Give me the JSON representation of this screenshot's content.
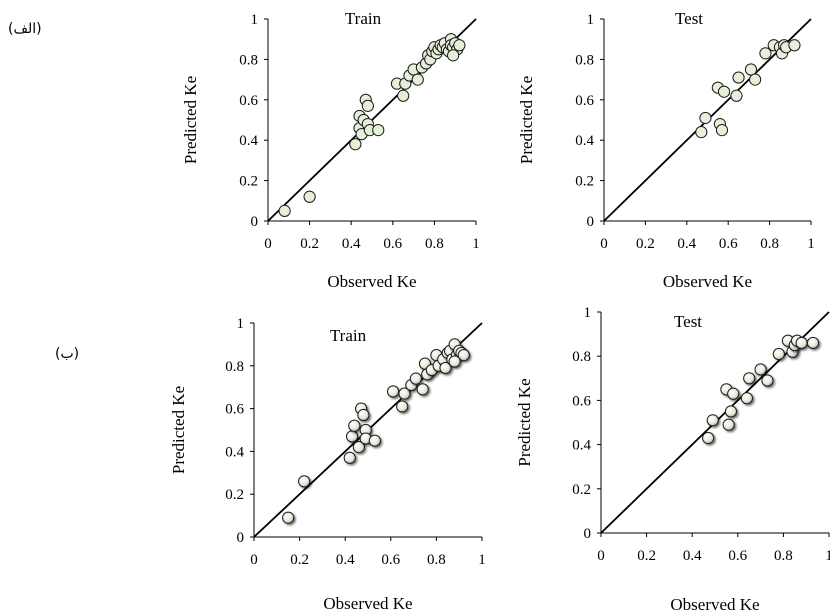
{
  "panel_labels": [
    "(الف)",
    "(ب)"
  ],
  "chart_data": [
    {
      "type": "scatter",
      "title": "Train",
      "xlabel": "Observed Ke",
      "ylabel": "Predicted Ke",
      "xlim": [
        0,
        1
      ],
      "ylim": [
        0,
        1
      ],
      "xticks": [
        "0",
        "0.2",
        "0.4",
        "0.6",
        "0.8",
        "1"
      ],
      "yticks": [
        "0",
        "0.2",
        "0.4",
        "0.6",
        "0.8",
        "1"
      ],
      "reference_line": "y = x",
      "marker_style": "flat",
      "points": [
        [
          0.08,
          0.05
        ],
        [
          0.2,
          0.12
        ],
        [
          0.42,
          0.38
        ],
        [
          0.44,
          0.46
        ],
        [
          0.44,
          0.52
        ],
        [
          0.45,
          0.43
        ],
        [
          0.46,
          0.5
        ],
        [
          0.47,
          0.6
        ],
        [
          0.48,
          0.57
        ],
        [
          0.48,
          0.48
        ],
        [
          0.49,
          0.45
        ],
        [
          0.53,
          0.45
        ],
        [
          0.62,
          0.68
        ],
        [
          0.65,
          0.62
        ],
        [
          0.66,
          0.68
        ],
        [
          0.68,
          0.72
        ],
        [
          0.7,
          0.75
        ],
        [
          0.72,
          0.7
        ],
        [
          0.74,
          0.76
        ],
        [
          0.76,
          0.78
        ],
        [
          0.77,
          0.82
        ],
        [
          0.78,
          0.8
        ],
        [
          0.79,
          0.84
        ],
        [
          0.8,
          0.86
        ],
        [
          0.81,
          0.83
        ],
        [
          0.82,
          0.85
        ],
        [
          0.83,
          0.87
        ],
        [
          0.84,
          0.86
        ],
        [
          0.85,
          0.88
        ],
        [
          0.86,
          0.85
        ],
        [
          0.87,
          0.84
        ],
        [
          0.88,
          0.9
        ],
        [
          0.88,
          0.87
        ],
        [
          0.89,
          0.86
        ],
        [
          0.9,
          0.88
        ],
        [
          0.91,
          0.85
        ],
        [
          0.92,
          0.87
        ],
        [
          0.89,
          0.82
        ]
      ]
    },
    {
      "type": "scatter",
      "title": "Test",
      "xlabel": "Observed Ke",
      "ylabel": "Predicted Ke",
      "xlim": [
        0,
        1
      ],
      "ylim": [
        0,
        1
      ],
      "xticks": [
        "0",
        "0.2",
        "0.4",
        "0.6",
        "0.8",
        "1"
      ],
      "yticks": [
        "0",
        "0.2",
        "0.4",
        "0.6",
        "0.8",
        "1"
      ],
      "reference_line": "y = x",
      "marker_style": "flat",
      "points": [
        [
          0.47,
          0.44
        ],
        [
          0.49,
          0.51
        ],
        [
          0.55,
          0.66
        ],
        [
          0.56,
          0.48
        ],
        [
          0.57,
          0.45
        ],
        [
          0.58,
          0.64
        ],
        [
          0.64,
          0.62
        ],
        [
          0.65,
          0.71
        ],
        [
          0.71,
          0.75
        ],
        [
          0.73,
          0.7
        ],
        [
          0.78,
          0.83
        ],
        [
          0.82,
          0.87
        ],
        [
          0.85,
          0.86
        ],
        [
          0.86,
          0.83
        ],
        [
          0.87,
          0.87
        ],
        [
          0.88,
          0.86
        ],
        [
          0.92,
          0.87
        ]
      ]
    },
    {
      "type": "scatter",
      "title": "Train",
      "xlabel": "Observed Ke",
      "ylabel": "Predicted Ke",
      "xlim": [
        0,
        1
      ],
      "ylim": [
        0,
        1
      ],
      "xticks": [
        "0",
        "0.2",
        "0.4",
        "0.6",
        "0.8",
        "1"
      ],
      "yticks": [
        "0",
        "0.2",
        "0.4",
        "0.6",
        "0.8",
        "1"
      ],
      "reference_line": "y = x",
      "marker_style": "shaded",
      "points": [
        [
          0.15,
          0.09
        ],
        [
          0.22,
          0.26
        ],
        [
          0.42,
          0.37
        ],
        [
          0.43,
          0.47
        ],
        [
          0.44,
          0.52
        ],
        [
          0.46,
          0.42
        ],
        [
          0.47,
          0.6
        ],
        [
          0.48,
          0.57
        ],
        [
          0.49,
          0.5
        ],
        [
          0.49,
          0.46
        ],
        [
          0.53,
          0.45
        ],
        [
          0.61,
          0.68
        ],
        [
          0.65,
          0.61
        ],
        [
          0.66,
          0.67
        ],
        [
          0.69,
          0.71
        ],
        [
          0.71,
          0.74
        ],
        [
          0.74,
          0.69
        ],
        [
          0.75,
          0.81
        ],
        [
          0.76,
          0.76
        ],
        [
          0.78,
          0.78
        ],
        [
          0.8,
          0.85
        ],
        [
          0.81,
          0.8
        ],
        [
          0.83,
          0.83
        ],
        [
          0.84,
          0.79
        ],
        [
          0.85,
          0.86
        ],
        [
          0.86,
          0.87
        ],
        [
          0.87,
          0.83
        ],
        [
          0.88,
          0.9
        ],
        [
          0.89,
          0.85
        ],
        [
          0.9,
          0.87
        ],
        [
          0.91,
          0.86
        ],
        [
          0.92,
          0.85
        ],
        [
          0.88,
          0.82
        ]
      ]
    },
    {
      "type": "scatter",
      "title": "Test",
      "xlabel": "Observed Ke",
      "ylabel": "Predicted Ke",
      "xlim": [
        0,
        1
      ],
      "ylim": [
        0,
        1
      ],
      "xticks": [
        "0",
        "0.2",
        "0.4",
        "0.6",
        "0.8",
        "1"
      ],
      "yticks": [
        "0",
        "0.2",
        "0.4",
        "0.6",
        "0.8",
        "1"
      ],
      "reference_line": "y = x",
      "marker_style": "shaded",
      "points": [
        [
          0.47,
          0.43
        ],
        [
          0.49,
          0.51
        ],
        [
          0.55,
          0.65
        ],
        [
          0.56,
          0.49
        ],
        [
          0.57,
          0.55
        ],
        [
          0.58,
          0.63
        ],
        [
          0.64,
          0.61
        ],
        [
          0.65,
          0.7
        ],
        [
          0.7,
          0.74
        ],
        [
          0.73,
          0.69
        ],
        [
          0.78,
          0.81
        ],
        [
          0.82,
          0.87
        ],
        [
          0.84,
          0.82
        ],
        [
          0.85,
          0.85
        ],
        [
          0.86,
          0.87
        ],
        [
          0.88,
          0.86
        ],
        [
          0.93,
          0.86
        ]
      ]
    }
  ]
}
